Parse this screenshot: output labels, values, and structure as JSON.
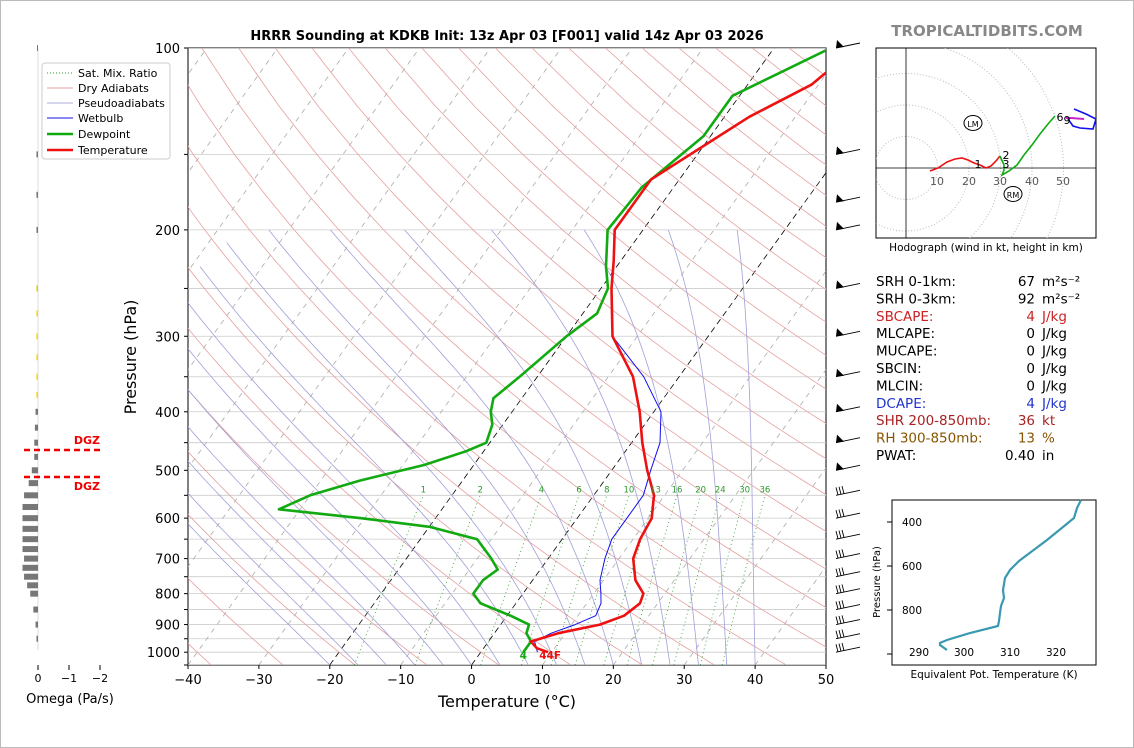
{
  "site": "TROPICALTIDBITS.COM",
  "chart_data": {
    "type": "line",
    "title": "HRRR Sounding at KDKB Init: 13z Apr 03 [F001] valid 14z Apr 03 2026",
    "xlabel": "Temperature (°C)",
    "ylabel": "Pressure (hPa)",
    "xlim": [
      -40,
      50
    ],
    "ylim": [
      1050,
      100
    ],
    "xticks": [
      -40,
      -30,
      -20,
      -10,
      0,
      10,
      20,
      30,
      40,
      50
    ],
    "xtick_labels": [
      "−40",
      "−30",
      "−20",
      "−10",
      "0",
      "10",
      "20",
      "30",
      "40",
      "50"
    ],
    "yticks": [
      100,
      200,
      300,
      400,
      500,
      600,
      700,
      800,
      900,
      1000
    ],
    "legend": {
      "placement": "top-left",
      "entries": [
        "Sat. Mix. Ratio",
        "Dry Adiabats",
        "Pseudoadiabats",
        "Wetbulb",
        "Dewpoint",
        "Temperature"
      ]
    },
    "mixing_ratio_labels": [
      "1",
      "2",
      "4",
      "6",
      "8",
      "10",
      "13",
      "16",
      "20",
      "24",
      "30",
      "36"
    ],
    "surface_dewpoint_label": "4",
    "surface_temp_label": "44F",
    "series": [
      {
        "name": "Temperature",
        "color": "#ee1111",
        "points": [
          [
            1000,
            9.5
          ],
          [
            985,
            7.5
          ],
          [
            960,
            6.0
          ],
          [
            930,
            9.0
          ],
          [
            900,
            14.0
          ],
          [
            870,
            16.5
          ],
          [
            830,
            17.5
          ],
          [
            800,
            17.0
          ],
          [
            760,
            14.5
          ],
          [
            700,
            12.0
          ],
          [
            650,
            11.0
          ],
          [
            600,
            10.5
          ],
          [
            550,
            8.5
          ],
          [
            500,
            5.0
          ],
          [
            450,
            1.5
          ],
          [
            400,
            -2.0
          ],
          [
            350,
            -6.5
          ],
          [
            300,
            -13.5
          ],
          [
            250,
            -18.5
          ],
          [
            225,
            -21.0
          ],
          [
            200,
            -24.0
          ],
          [
            165,
            -24.0
          ],
          [
            130,
            -16.5
          ],
          [
            115,
            -11.0
          ],
          [
            100,
            -8.5
          ]
        ]
      },
      {
        "name": "Dewpoint",
        "color": "#11aa11",
        "points": [
          [
            1000,
            6.0
          ],
          [
            985,
            6.0
          ],
          [
            960,
            6.0
          ],
          [
            930,
            4.5
          ],
          [
            900,
            4.0
          ],
          [
            870,
            0.5
          ],
          [
            830,
            -5.0
          ],
          [
            800,
            -7.0
          ],
          [
            760,
            -7.0
          ],
          [
            730,
            -6.0
          ],
          [
            700,
            -8.0
          ],
          [
            650,
            -12.0
          ],
          [
            620,
            -20.0
          ],
          [
            600,
            -30.5
          ],
          [
            580,
            -43.0
          ],
          [
            550,
            -40.0
          ],
          [
            520,
            -34.5
          ],
          [
            490,
            -27.0
          ],
          [
            465,
            -22.5
          ],
          [
            450,
            -20.5
          ],
          [
            420,
            -21.5
          ],
          [
            400,
            -23.0
          ],
          [
            380,
            -24.0
          ],
          [
            350,
            -22.5
          ],
          [
            300,
            -20.0
          ],
          [
            275,
            -18.0
          ],
          [
            250,
            -19.0
          ],
          [
            230,
            -21.5
          ],
          [
            200,
            -25.0
          ],
          [
            170,
            -24.5
          ],
          [
            140,
            -21.0
          ],
          [
            120,
            -21.0
          ],
          [
            100,
            -12.0
          ]
        ]
      },
      {
        "name": "Wetbulb",
        "color": "#1111ee",
        "points": [
          [
            1000,
            8.0
          ],
          [
            960,
            6.5
          ],
          [
            930,
            8.0
          ],
          [
            900,
            10.5
          ],
          [
            870,
            12.5
          ],
          [
            830,
            12.0
          ],
          [
            800,
            11.0
          ],
          [
            760,
            9.5
          ],
          [
            700,
            8.0
          ],
          [
            650,
            7.0
          ],
          [
            600,
            7.0
          ],
          [
            550,
            7.0
          ],
          [
            500,
            5.5
          ],
          [
            450,
            4.0
          ],
          [
            400,
            1.0
          ],
          [
            350,
            -5.0
          ],
          [
            300,
            -13.5
          ],
          [
            250,
            -18.5
          ],
          [
            225,
            -21.0
          ],
          [
            200,
            -24.0
          ],
          [
            165,
            -24.0
          ],
          [
            130,
            -16.5
          ],
          [
            115,
            -11.0
          ],
          [
            100,
            -8.5
          ]
        ]
      }
    ],
    "wind_barb_levels": [
      100,
      150,
      180,
      200,
      250,
      300,
      350,
      400,
      450,
      500,
      550,
      600,
      650,
      700,
      750,
      800,
      850,
      900,
      950,
      1000
    ],
    "omega": {
      "xlabel": "Omega (Pa/s)",
      "xtick_labels": [
        "0",
        "−1",
        "−2"
      ],
      "dgz_label": "DGZ",
      "dgz_levels": [
        460,
        515
      ]
    },
    "hodograph": {
      "caption": "Hodograph (wind in kt, height in km)",
      "ring_labels": [
        "10",
        "20",
        "30",
        "40",
        "50"
      ],
      "height_labels": [
        "1",
        "2",
        "3",
        "6",
        "9"
      ],
      "lm_label": "LM",
      "rm_label": "RM"
    },
    "theta_e": {
      "ylabel": "Pressure (hPa)",
      "xlabel": "Equivalent Pot. Temperature (K)",
      "xticks": [
        "290",
        "300",
        "310",
        "320"
      ],
      "yticks": [
        "400",
        "600",
        "800"
      ]
    }
  },
  "params": [
    {
      "label": "SRH 0-1km:",
      "value": "67",
      "unit": "m²s⁻²",
      "color": "#000000"
    },
    {
      "label": "SRH 0-3km:",
      "value": "92",
      "unit": "m²s⁻²",
      "color": "#000000"
    },
    {
      "label": "SBCAPE:",
      "value": "4",
      "unit": "J/kg",
      "color": "#cc2222"
    },
    {
      "label": "MLCAPE:",
      "value": "0",
      "unit": "J/kg",
      "color": "#000000"
    },
    {
      "label": "MUCAPE:",
      "value": "0",
      "unit": "J/kg",
      "color": "#000000"
    },
    {
      "label": "SBCIN:",
      "value": "0",
      "unit": "J/kg",
      "color": "#000000"
    },
    {
      "label": "MLCIN:",
      "value": "0",
      "unit": "J/kg",
      "color": "#000000"
    },
    {
      "label": "DCAPE:",
      "value": "4",
      "unit": "J/kg",
      "color": "#2233cc"
    },
    {
      "label": "SHR 200-850mb:",
      "value": "36",
      "unit": "kt",
      "color": "#aa2222"
    },
    {
      "label": "RH 300-850mb:",
      "value": "13",
      "unit": "%",
      "color": "#885500"
    },
    {
      "label": "PWAT:",
      "value": "0.40",
      "unit": "in",
      "color": "#000000"
    }
  ]
}
